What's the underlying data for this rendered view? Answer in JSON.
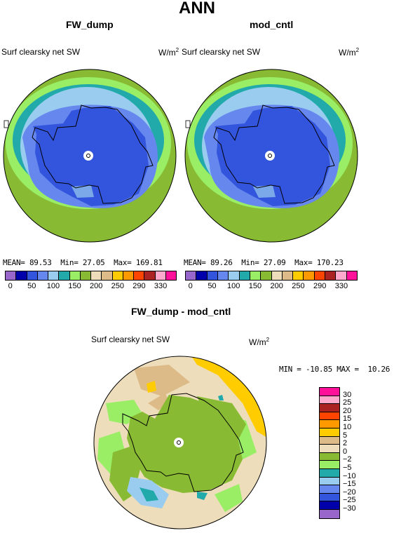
{
  "main_title": "ANN",
  "panels": [
    {
      "title": "FW_dump",
      "variable": "Surf clearsky net SW",
      "units": "W/m",
      "units_sup": "2",
      "stats": {
        "mean_label": "MEAN=",
        "mean": "89.53",
        "min_label": "Min=",
        "min": "27.05",
        "max_label": "Max=",
        "max": "169.81"
      }
    },
    {
      "title": "mod_cntl",
      "variable": "Surf clearsky net SW",
      "units": "W/m",
      "units_sup": "2",
      "stats": {
        "mean_label": "MEAN=",
        "mean": "89.26",
        "min_label": "Min=",
        "min": "27.09",
        "max_label": "Max=",
        "max": "170.23"
      }
    }
  ],
  "colorbar": {
    "colors": [
      "#9966cc",
      "#0000aa",
      "#3355dd",
      "#6688ee",
      "#99ccee",
      "#22aaaa",
      "#99ee66",
      "#88bb33",
      "#eeddbb",
      "#ddbb88",
      "#ffcc00",
      "#ff9900",
      "#ff4400",
      "#aa2222",
      "#ffaacc",
      "#ff1199"
    ],
    "ticks": [
      "0",
      "50",
      "100",
      "150",
      "200",
      "250",
      "290",
      "330"
    ]
  },
  "diff_panel": {
    "title": "FW_dump - mod_cntl",
    "variable": "Surf clearsky net SW",
    "units": "W/m",
    "units_sup": "2",
    "min_label": "MIN =",
    "min": "-10.85",
    "max_label": "MAX =",
    "max": "10.26"
  },
  "diff_colorbar": {
    "colors": [
      "#ff1199",
      "#ffaacc",
      "#aa2222",
      "#ff4400",
      "#ff9900",
      "#ffcc00",
      "#ddbb88",
      "#eeddbb",
      "#88bb33",
      "#99ee66",
      "#22aaaa",
      "#99ccee",
      "#6688ee",
      "#3355dd",
      "#0000aa",
      "#9966cc"
    ],
    "ticks": [
      "30",
      "25",
      "20",
      "15",
      "10",
      "5",
      "2",
      "0",
      "−2",
      "−5",
      "−10",
      "−15",
      "−20",
      "−25",
      "−30"
    ]
  }
}
